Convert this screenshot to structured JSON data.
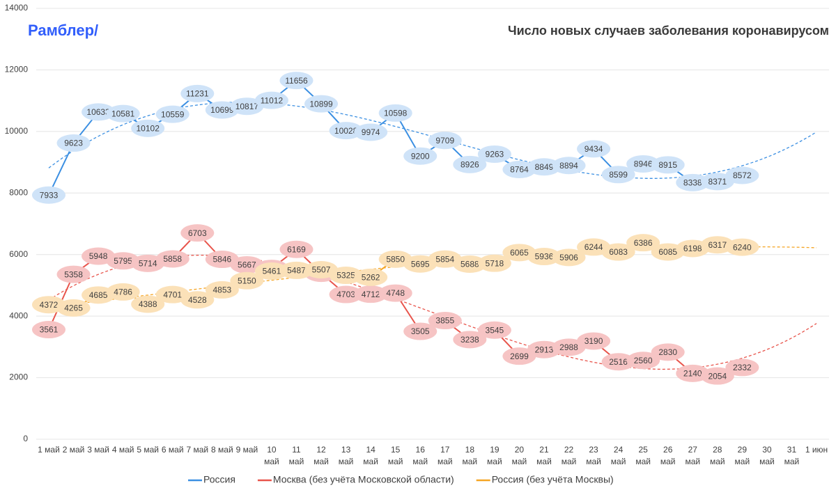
{
  "logo": "Рамблер/",
  "chart_data": {
    "type": "line",
    "title": "Число новых случаев заболевания коронавирусом",
    "categories": [
      "1 май",
      "2 май",
      "3 май",
      "4 май",
      "5 май",
      "6 май",
      "7 май",
      "8 май",
      "9 май",
      "10 май",
      "11 май",
      "12 май",
      "13 май",
      "14 май",
      "15 май",
      "16 май",
      "17 май",
      "18 май",
      "19 май",
      "20 май",
      "21 май",
      "22 май",
      "23 май",
      "24 май",
      "25 май",
      "26 май",
      "27 май",
      "28 май",
      "29 май",
      "30 май",
      "31 май",
      "1 июн"
    ],
    "series": [
      {
        "name": "Россия",
        "color": "#3b8fe2",
        "label_color": "#cfe3f8",
        "values": [
          7933,
          9623,
          10633,
          10581,
          10102,
          10559,
          11231,
          10699,
          10817,
          11012,
          11656,
          10899,
          10028,
          9974,
          10598,
          9200,
          9709,
          8926,
          9263,
          8764,
          8849,
          8894,
          9434,
          8599,
          8946,
          8915,
          8338,
          8371,
          8572,
          null,
          null,
          null
        ]
      },
      {
        "name": "Москва (без учёта Московской области)",
        "color": "#e8544b",
        "label_color": "#f6c4c4",
        "values": [
          3561,
          5358,
          5948,
          5795,
          5714,
          5858,
          6703,
          5846,
          5667,
          5551,
          6169,
          5392,
          4703,
          4712,
          4748,
          3505,
          3855,
          3238,
          3545,
          2699,
          2913,
          2988,
          3190,
          2516,
          2560,
          2830,
          2140,
          2054,
          2332,
          null,
          null,
          null
        ]
      },
      {
        "name": "Россия (без учёта Москвы)",
        "color": "#f5a524",
        "label_color": "#fbe1b8",
        "values": [
          4372,
          4265,
          4685,
          4786,
          4388,
          4701,
          4528,
          4853,
          5150,
          5461,
          5487,
          5507,
          5325,
          5262,
          5850,
          5695,
          5854,
          5688,
          5718,
          6065,
          5936,
          5906,
          6244,
          6083,
          6386,
          6085,
          6198,
          6317,
          6240,
          null,
          null,
          null
        ]
      }
    ],
    "ylim": [
      0,
      14000
    ],
    "yticks": [
      0,
      2000,
      4000,
      6000,
      8000,
      10000,
      12000,
      14000
    ],
    "grid": true,
    "trendline": true,
    "legend": "bottom"
  }
}
